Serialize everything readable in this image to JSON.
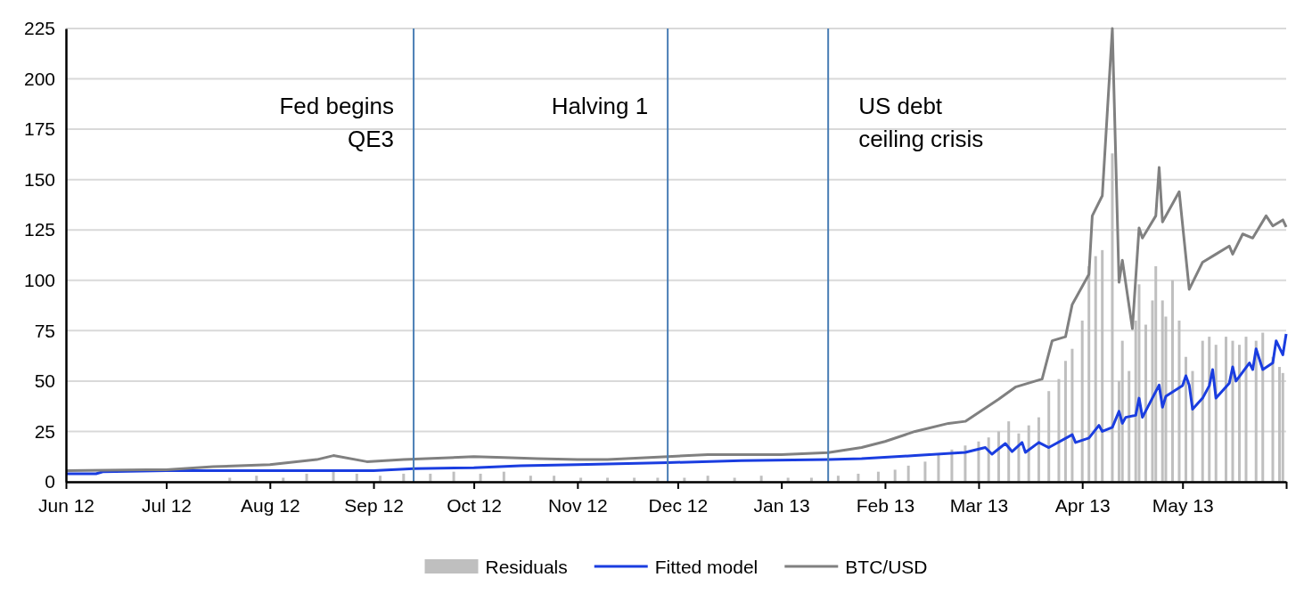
{
  "chart_data": {
    "type": "line",
    "xlim": [
      "2012-06-01",
      "2013-06-01"
    ],
    "xticks": [
      {
        "value": "2012-06-01",
        "label": "Jun 12"
      },
      {
        "value": "2012-07-01",
        "label": "Jul 12"
      },
      {
        "value": "2012-08-01",
        "label": "Aug 12"
      },
      {
        "value": "2012-09-01",
        "label": "Sep 12"
      },
      {
        "value": "2012-10-01",
        "label": "Oct 12"
      },
      {
        "value": "2012-11-01",
        "label": "Nov 12"
      },
      {
        "value": "2012-12-01",
        "label": "Dec 12"
      },
      {
        "value": "2013-01-01",
        "label": "Jan 13"
      },
      {
        "value": "2013-02-01",
        "label": "Feb 13"
      },
      {
        "value": "2013-03-01",
        "label": "Mar 13"
      },
      {
        "value": "2013-04-01",
        "label": "Apr 13"
      },
      {
        "value": "2013-05-01",
        "label": "May 13"
      },
      {
        "value": "2013-06-01",
        "label": null
      }
    ],
    "ylim": [
      0,
      225
    ],
    "yticks": [
      0,
      25,
      50,
      75,
      100,
      125,
      150,
      175,
      200,
      225
    ],
    "grid": "y",
    "legend": "bottom",
    "ref_lines": [
      {
        "axis": "x",
        "value": "2012-09-13",
        "label": "Fed begins\nQE3",
        "color": "#4a7eb5"
      },
      {
        "axis": "x",
        "value": "2012-11-28",
        "label": "Halving 1",
        "color": "#4a7eb5"
      },
      {
        "axis": "x",
        "value": "2013-01-15",
        "label": "US debt\nceiling crisis",
        "color": "#4a7eb5"
      }
    ],
    "series": [
      {
        "name": "Residuals",
        "type": "bar",
        "color": "#bfbfbf",
        "x": [
          "2012-07-20",
          "2012-07-28",
          "2012-08-05",
          "2012-08-12",
          "2012-08-20",
          "2012-08-27",
          "2012-09-03",
          "2012-09-10",
          "2012-09-18",
          "2012-09-25",
          "2012-10-03",
          "2012-10-10",
          "2012-10-18",
          "2012-10-25",
          "2012-11-02",
          "2012-11-10",
          "2012-11-18",
          "2012-11-25",
          "2012-12-03",
          "2012-12-10",
          "2012-12-18",
          "2012-12-26",
          "2013-01-03",
          "2013-01-10",
          "2013-01-18",
          "2013-01-24",
          "2013-01-30",
          "2013-02-04",
          "2013-02-08",
          "2013-02-13",
          "2013-02-17",
          "2013-02-21",
          "2013-02-25",
          "2013-03-01",
          "2013-03-04",
          "2013-03-07",
          "2013-03-10",
          "2013-03-13",
          "2013-03-16",
          "2013-03-19",
          "2013-03-22",
          "2013-03-25",
          "2013-03-27",
          "2013-03-29",
          "2013-04-01",
          "2013-04-03",
          "2013-04-05",
          "2013-04-07",
          "2013-04-10",
          "2013-04-12",
          "2013-04-13",
          "2013-04-15",
          "2013-04-17",
          "2013-04-18",
          "2013-04-20",
          "2013-04-22",
          "2013-04-23",
          "2013-04-25",
          "2013-04-26",
          "2013-04-28",
          "2013-04-30",
          "2013-05-02",
          "2013-05-04",
          "2013-05-07",
          "2013-05-09",
          "2013-05-11",
          "2013-05-14",
          "2013-05-16",
          "2013-05-18",
          "2013-05-20",
          "2013-05-23",
          "2013-05-25",
          "2013-05-28",
          "2013-05-30",
          "2013-05-31"
        ],
        "values": [
          2,
          3,
          2,
          4,
          5,
          4,
          3,
          4,
          4,
          5,
          4,
          5,
          3,
          3,
          2,
          2,
          2,
          2,
          2,
          3,
          2,
          3,
          2,
          2,
          3,
          4,
          5,
          6,
          8,
          10,
          14,
          16,
          18,
          20,
          22,
          25,
          30,
          24,
          28,
          32,
          45,
          51,
          60,
          66,
          80,
          107,
          112,
          115,
          163,
          50,
          70,
          55,
          80,
          98,
          78,
          90,
          107,
          90,
          82,
          100,
          80,
          62,
          55,
          70,
          72,
          68,
          72,
          70,
          68,
          72,
          70,
          74,
          62,
          57,
          54
        ]
      },
      {
        "name": "Fitted model",
        "color": "#1a3de0",
        "x": [
          "2012-06-01",
          "2012-06-10",
          "2012-06-12",
          "2012-07-01",
          "2012-09-01",
          "2012-09-13",
          "2012-10-01",
          "2012-10-15",
          "2012-11-01",
          "2012-11-28",
          "2012-12-20",
          "2013-01-15",
          "2013-01-25",
          "2013-02-10",
          "2013-02-25",
          "2013-03-03",
          "2013-03-05",
          "2013-03-09",
          "2013-03-11",
          "2013-03-14",
          "2013-03-15",
          "2013-03-19",
          "2013-03-22",
          "2013-03-29",
          "2013-03-30",
          "2013-04-03",
          "2013-04-06",
          "2013-04-07",
          "2013-04-10",
          "2013-04-12",
          "2013-04-13",
          "2013-04-14",
          "2013-04-17",
          "2013-04-18",
          "2013-04-19",
          "2013-04-24",
          "2013-04-25",
          "2013-04-26",
          "2013-05-01",
          "2013-05-02",
          "2013-05-03",
          "2013-05-04",
          "2013-05-07",
          "2013-05-09",
          "2013-05-10",
          "2013-05-11",
          "2013-05-15",
          "2013-05-16",
          "2013-05-17",
          "2013-05-21",
          "2013-05-22",
          "2013-05-23",
          "2013-05-25",
          "2013-05-28",
          "2013-05-29",
          "2013-05-31",
          "2013-06-01"
        ],
        "values": [
          4,
          4,
          5,
          5.5,
          5.5,
          6.5,
          7,
          8,
          8.5,
          9.5,
          10.5,
          11,
          11.5,
          13,
          14.6,
          17,
          13.7,
          19,
          15,
          19.5,
          14.6,
          19.5,
          17,
          23.4,
          19.5,
          21.7,
          28,
          25,
          27,
          35,
          29,
          32,
          33,
          41.5,
          32,
          48,
          37,
          42.4,
          47.7,
          52.6,
          48,
          36,
          41.5,
          47.7,
          55.7,
          41.5,
          49,
          57,
          50,
          59,
          55.7,
          66,
          55.7,
          59,
          70,
          63,
          73.4
        ]
      },
      {
        "name": "BTC/USD",
        "color": "#808080",
        "x": [
          "2012-06-01",
          "2012-06-25",
          "2012-07-01",
          "2012-07-15",
          "2012-08-01",
          "2012-08-15",
          "2012-08-20",
          "2012-08-30",
          "2012-09-10",
          "2012-10-01",
          "2012-10-10",
          "2012-10-20",
          "2012-11-01",
          "2012-11-10",
          "2012-11-28",
          "2012-12-10",
          "2013-01-01",
          "2013-01-15",
          "2013-01-25",
          "2013-02-01",
          "2013-02-10",
          "2013-02-20",
          "2013-02-25",
          "2013-03-07",
          "2013-03-12",
          "2013-03-20",
          "2013-03-23",
          "2013-03-27",
          "2013-03-29",
          "2013-04-03",
          "2013-04-04",
          "2013-04-07",
          "2013-04-10",
          "2013-04-12",
          "2013-04-13",
          "2013-04-16",
          "2013-04-18",
          "2013-04-19",
          "2013-04-23",
          "2013-04-24",
          "2013-04-25",
          "2013-04-30",
          "2013-05-03",
          "2013-05-07",
          "2013-05-11",
          "2013-05-15",
          "2013-05-16",
          "2013-05-19",
          "2013-05-22",
          "2013-05-26",
          "2013-05-28",
          "2013-05-31",
          "2013-06-01"
        ],
        "values": [
          5.5,
          6,
          6,
          7.5,
          8.5,
          11,
          13,
          10,
          11,
          12.5,
          12,
          11.5,
          11,
          11,
          12.5,
          13.5,
          13.5,
          14.5,
          17,
          20,
          25,
          29,
          30,
          41,
          47,
          51,
          70,
          72,
          88,
          103,
          132,
          142,
          225,
          99,
          110,
          76,
          126,
          121,
          132,
          156,
          129,
          144,
          95.5,
          109,
          113,
          117,
          113,
          123,
          121,
          132,
          127,
          130,
          126.5
        ]
      }
    ]
  }
}
